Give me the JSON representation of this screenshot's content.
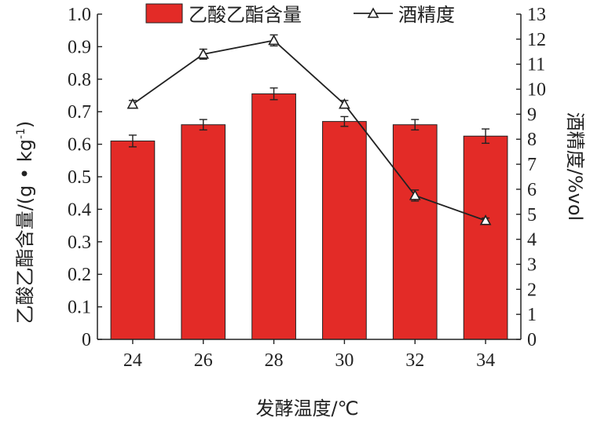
{
  "chart_data": {
    "type": "bar+line",
    "xlabel": "发酵温度/℃",
    "categories": [
      "24",
      "26",
      "28",
      "30",
      "32",
      "34"
    ],
    "bar_series": {
      "name": "乙酸乙酯含量",
      "axis": "left",
      "color": "#e32b27",
      "values": [
        0.61,
        0.66,
        0.755,
        0.67,
        0.66,
        0.625
      ],
      "errors": [
        0.018,
        0.016,
        0.018,
        0.015,
        0.016,
        0.022
      ]
    },
    "line_series": {
      "name": "酒精度",
      "axis": "right",
      "color": "#222222",
      "marker": "open-triangle",
      "values": [
        9.4,
        11.4,
        11.95,
        9.4,
        5.75,
        4.75
      ],
      "errors": [
        0.15,
        0.2,
        0.22,
        0.15,
        0.22,
        0.1
      ]
    },
    "left_axis": {
      "label_main": "乙酸乙酯含量/",
      "label_unit": "(g • kg",
      "label_sup": "-1",
      "label_close": ")",
      "ylim": [
        0,
        1.0
      ],
      "ticks": [
        "0",
        "0.1",
        "0.2",
        "0.3",
        "0.4",
        "0.5",
        "0.6",
        "0.7",
        "0.8",
        "0.9",
        "1.0"
      ]
    },
    "right_axis": {
      "label": "酒精度/%vol",
      "ylim": [
        0,
        13
      ],
      "ticks": [
        "0",
        "1",
        "2",
        "3",
        "4",
        "5",
        "6",
        "7",
        "8",
        "9",
        "10",
        "11",
        "12",
        "13"
      ]
    },
    "legend": {
      "position": "top-center"
    },
    "grid": false
  }
}
